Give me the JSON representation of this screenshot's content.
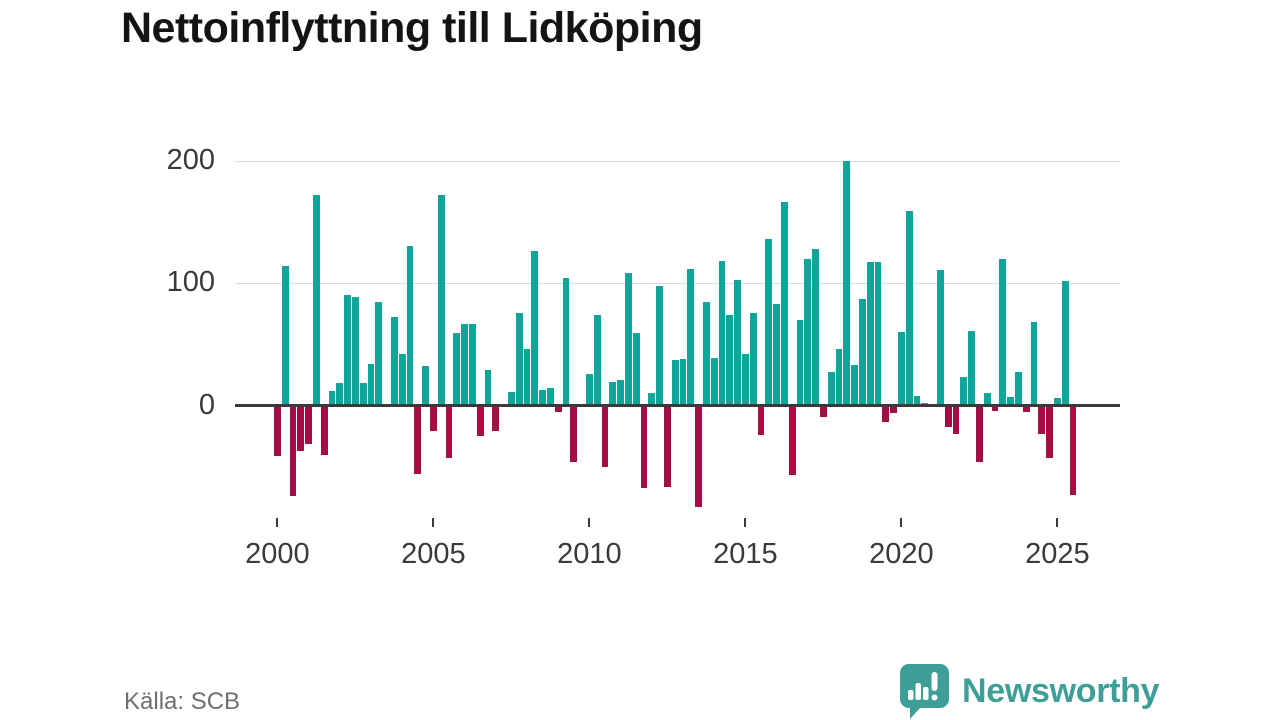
{
  "title": "Nettoinflyttning till Lidköping",
  "source": "Källa: SCB",
  "branding": {
    "name": "Newsworthy"
  },
  "colors": {
    "positive_bar": "#0ea59b",
    "negative_bar": "#a50d45",
    "axis_line": "#3a3a3a",
    "gridline": "#dcdcdc",
    "tick_text": "#3a3a3a",
    "title_text": "#141414",
    "source_text": "#6f6f6f",
    "brand_teal": "#3d9f98"
  },
  "chart_data": {
    "type": "bar",
    "title": "Nettoinflyttning till Lidköping",
    "xlabel": "",
    "ylabel": "",
    "frequency": "quarterly",
    "x_start": "2000-Q1",
    "x_end": "2025-Q3",
    "values": [
      -40,
      114,
      -73,
      -36,
      -30,
      172,
      -39,
      12,
      18,
      90,
      89,
      18,
      34,
      85,
      0,
      72,
      42,
      130,
      -55,
      32,
      -20,
      172,
      -42,
      59,
      67,
      67,
      -24,
      29,
      -20,
      0,
      11,
      76,
      46,
      126,
      13,
      14,
      -4,
      104,
      -45,
      0,
      26,
      74,
      -49,
      19,
      21,
      108,
      59,
      -66,
      10,
      98,
      -65,
      37,
      38,
      112,
      -82,
      85,
      39,
      118,
      74,
      103,
      42,
      76,
      -23,
      136,
      83,
      166,
      -56,
      70,
      120,
      128,
      -8,
      27,
      46,
      200,
      33,
      87,
      117,
      117,
      -12,
      -5,
      60,
      159,
      8,
      2,
      0,
      111,
      -16,
      -22,
      23,
      61,
      -45,
      10,
      -3,
      120,
      7,
      27,
      -4,
      68,
      -22,
      -42,
      6,
      102,
      -72
    ],
    "xticks": [
      "2000",
      "2005",
      "2010",
      "2015",
      "2020",
      "2025"
    ],
    "yticks": [
      0,
      100,
      200
    ],
    "ylim": [
      -100,
      215
    ],
    "grid": "horizontal",
    "legend": "none"
  }
}
